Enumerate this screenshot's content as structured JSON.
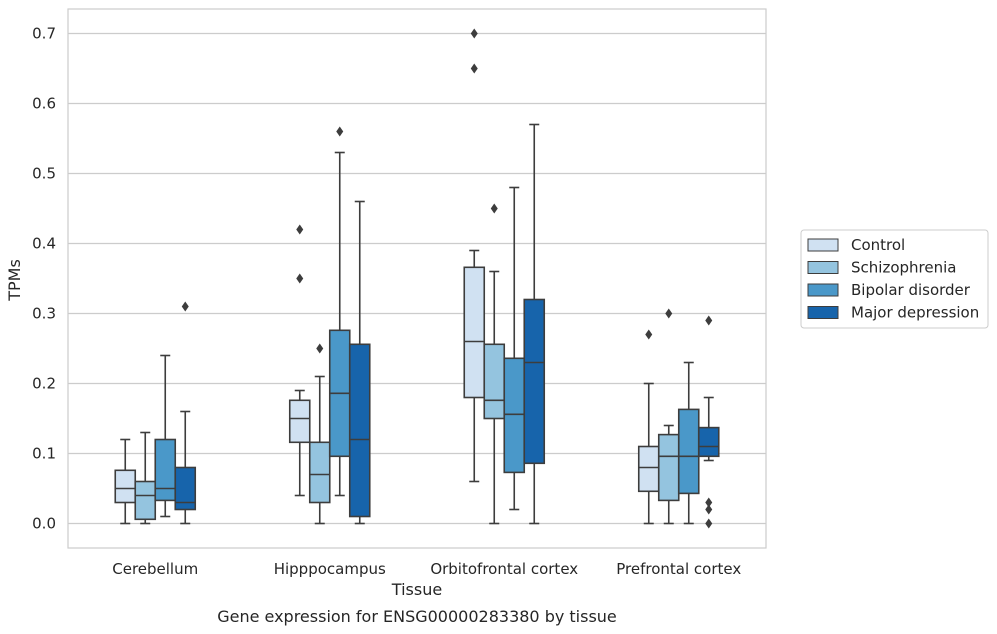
{
  "chart_data": {
    "type": "box",
    "xlabel": "Tissue",
    "ylabel": "TPMs",
    "caption": "Gene expression for ENSG00000283380 by tissue",
    "ylim": [
      -0.035,
      0.735
    ],
    "yticks": [
      0.0,
      0.1,
      0.2,
      0.3,
      0.4,
      0.5,
      0.6,
      0.7
    ],
    "ytick_labels": [
      "0.0",
      "0.1",
      "0.2",
      "0.3",
      "0.4",
      "0.5",
      "0.6",
      "0.7"
    ],
    "grid": "horizontal",
    "legend_position": "right",
    "categories": [
      "Cerebellum",
      "Hipppocampus",
      "Orbitofrontal cortex",
      "Prefrontal cortex"
    ],
    "series": [
      {
        "name": "Control",
        "color": "#d0e1f2",
        "boxes": [
          {
            "whisker_low": 0.0,
            "q1": 0.03,
            "median": 0.05,
            "q3": 0.076,
            "whisker_high": 0.12,
            "outliers": []
          },
          {
            "whisker_low": 0.04,
            "q1": 0.116,
            "median": 0.15,
            "q3": 0.176,
            "whisker_high": 0.19,
            "outliers": [
              0.35,
              0.42
            ]
          },
          {
            "whisker_low": 0.06,
            "q1": 0.18,
            "median": 0.26,
            "q3": 0.366,
            "whisker_high": 0.39,
            "outliers": [
              0.65,
              0.7
            ]
          },
          {
            "whisker_low": 0.0,
            "q1": 0.046,
            "median": 0.08,
            "q3": 0.11,
            "whisker_high": 0.2,
            "outliers": [
              0.27
            ]
          }
        ]
      },
      {
        "name": "Schizophrenia",
        "color": "#94c4df",
        "boxes": [
          {
            "whisker_low": 0.0,
            "q1": 0.006,
            "median": 0.04,
            "q3": 0.06,
            "whisker_high": 0.13,
            "outliers": []
          },
          {
            "whisker_low": 0.0,
            "q1": 0.03,
            "median": 0.07,
            "q3": 0.116,
            "whisker_high": 0.21,
            "outliers": [
              0.25
            ]
          },
          {
            "whisker_low": 0.0,
            "q1": 0.15,
            "median": 0.176,
            "q3": 0.256,
            "whisker_high": 0.36,
            "outliers": [
              0.45
            ]
          },
          {
            "whisker_low": 0.0,
            "q1": 0.033,
            "median": 0.096,
            "q3": 0.127,
            "whisker_high": 0.14,
            "outliers": [
              0.3
            ]
          }
        ]
      },
      {
        "name": "Bipolar disorder",
        "color": "#4a98c9",
        "boxes": [
          {
            "whisker_low": 0.01,
            "q1": 0.033,
            "median": 0.05,
            "q3": 0.12,
            "whisker_high": 0.24,
            "outliers": []
          },
          {
            "whisker_low": 0.04,
            "q1": 0.096,
            "median": 0.186,
            "q3": 0.276,
            "whisker_high": 0.53,
            "outliers": [
              0.56
            ]
          },
          {
            "whisker_low": 0.02,
            "q1": 0.073,
            "median": 0.156,
            "q3": 0.236,
            "whisker_high": 0.48,
            "outliers": []
          },
          {
            "whisker_low": 0.0,
            "q1": 0.043,
            "median": 0.096,
            "q3": 0.163,
            "whisker_high": 0.23,
            "outliers": []
          }
        ]
      },
      {
        "name": "Major depression",
        "color": "#1764ab",
        "boxes": [
          {
            "whisker_low": 0.0,
            "q1": 0.02,
            "median": 0.03,
            "q3": 0.08,
            "whisker_high": 0.16,
            "outliers": [
              0.31
            ]
          },
          {
            "whisker_low": 0.0,
            "q1": 0.01,
            "median": 0.12,
            "q3": 0.256,
            "whisker_high": 0.46,
            "outliers": []
          },
          {
            "whisker_low": 0.0,
            "q1": 0.086,
            "median": 0.23,
            "q3": 0.32,
            "whisker_high": 0.57,
            "outliers": []
          },
          {
            "whisker_low": 0.09,
            "q1": 0.096,
            "median": 0.11,
            "q3": 0.137,
            "whisker_high": 0.18,
            "outliers": [
              0.0,
              0.02,
              0.03,
              0.29
            ]
          }
        ]
      }
    ]
  }
}
